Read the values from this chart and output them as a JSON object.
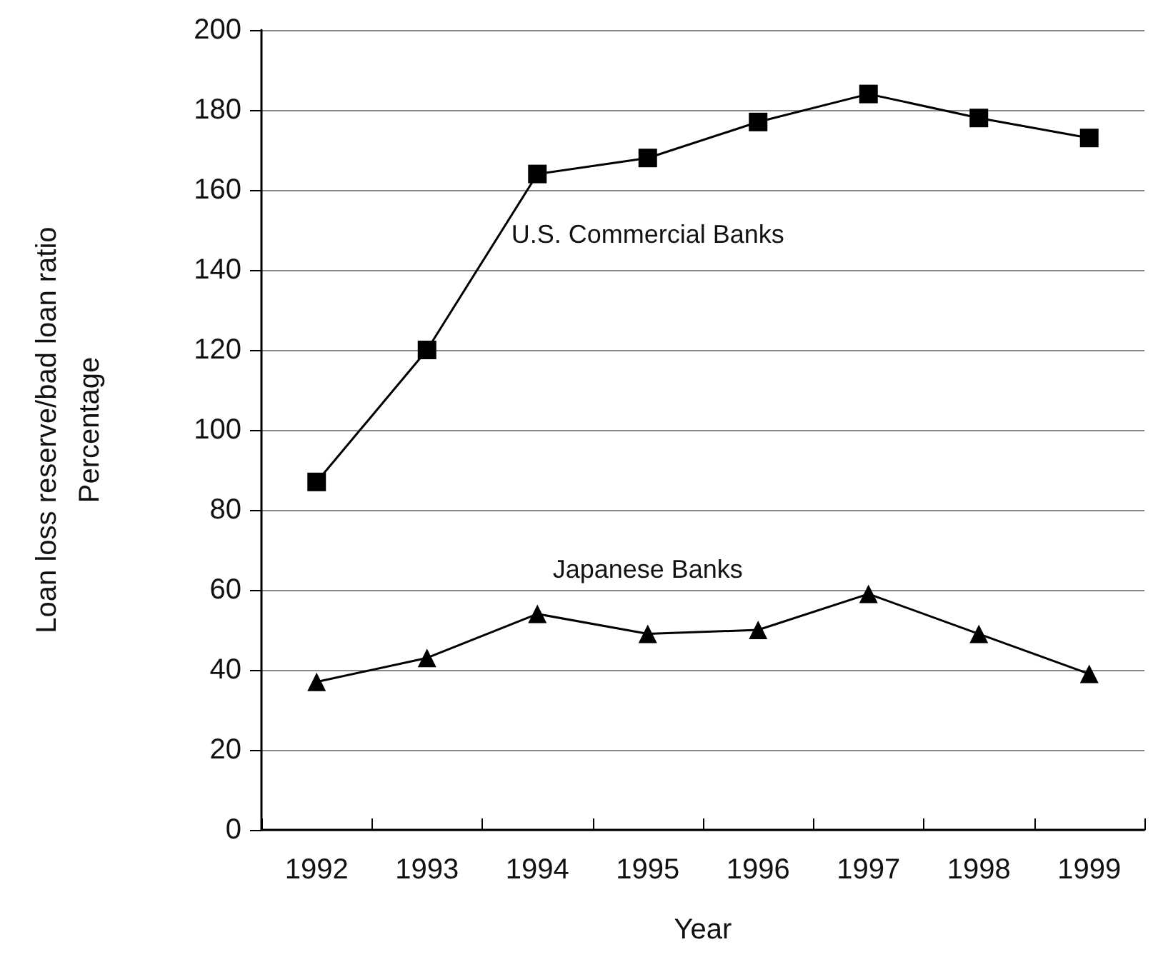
{
  "chart_data": {
    "type": "line",
    "xlabel": "Year",
    "ylabel": "Loan loss reserve/bad loan ratio\nPercentage",
    "categories": [
      "1992",
      "1993",
      "1994",
      "1995",
      "1996",
      "1997",
      "1998",
      "1999"
    ],
    "series": [
      {
        "name": "U.S. Commercial Banks",
        "color": "#000000",
        "marker": "square",
        "values": [
          87,
          120,
          164,
          168,
          177,
          184,
          178,
          173
        ]
      },
      {
        "name": "Japanese Banks",
        "color": "#000000",
        "marker": "triangle",
        "values": [
          37,
          43,
          54,
          49,
          50,
          59,
          49,
          39
        ]
      }
    ],
    "ylim": [
      0,
      200
    ],
    "yticks": [
      0,
      20,
      40,
      60,
      80,
      100,
      120,
      140,
      160,
      180,
      200
    ],
    "grid": "y",
    "legend": false,
    "line_style": "solid"
  }
}
